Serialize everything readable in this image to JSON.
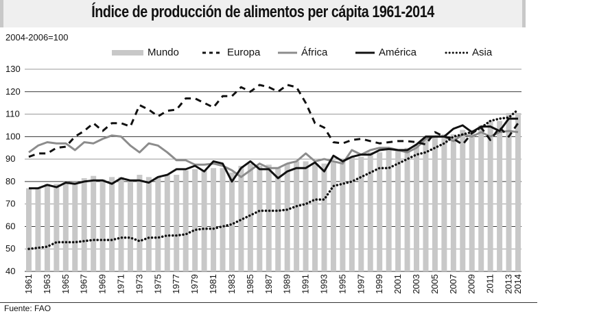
{
  "chart_data": {
    "type": "bar+line",
    "title": "Índice de producción de alimentos per cápita 1961-2014",
    "subtitle": "2004-2006=100",
    "source": "Fuente: FAO",
    "xlabel": "",
    "ylabel": "",
    "ylim": [
      40,
      130
    ],
    "yticks": [
      40,
      50,
      60,
      70,
      80,
      90,
      100,
      110,
      120,
      130
    ],
    "grid": true,
    "legend_position": "top",
    "x": [
      1961,
      1962,
      1963,
      1964,
      1965,
      1966,
      1967,
      1968,
      1969,
      1970,
      1971,
      1972,
      1973,
      1974,
      1975,
      1976,
      1977,
      1978,
      1979,
      1980,
      1981,
      1982,
      1983,
      1984,
      1985,
      1986,
      1987,
      1988,
      1989,
      1990,
      1991,
      1992,
      1993,
      1994,
      1995,
      1996,
      1997,
      1998,
      1999,
      2000,
      2001,
      2002,
      2003,
      2004,
      2005,
      2006,
      2007,
      2008,
      2009,
      2010,
      2011,
      2012,
      2013,
      2014
    ],
    "xtick_labels": [
      "1961",
      "1963",
      "1965",
      "1967",
      "1969",
      "1971",
      "1973",
      "1975",
      "1977",
      "1979",
      "1981",
      "1983",
      "1985",
      "1987",
      "1989",
      "1991",
      "1993",
      "1995",
      "1997",
      "1999",
      "2001",
      "2003",
      "2005",
      "2007",
      "2009",
      "2011",
      "2013",
      "2014"
    ],
    "series": [
      {
        "name": "Mundo",
        "style": "bar",
        "color": "#c8c8c8",
        "values": [
          77,
          77,
          79,
          79,
          80,
          80,
          81.5,
          82.5,
          81,
          82,
          82,
          80,
          83,
          82,
          82,
          83,
          83,
          85,
          85.5,
          85,
          86,
          86,
          84,
          87,
          88,
          87,
          87.5,
          86,
          88,
          89,
          89,
          88,
          88,
          89,
          89,
          91,
          91,
          93,
          93,
          94,
          94,
          95,
          96,
          99,
          100,
          101,
          101,
          103,
          103,
          105,
          107,
          107,
          110.5,
          110.5
        ]
      },
      {
        "name": "Europa",
        "style": "dashed",
        "color": "#111111",
        "values": [
          91,
          92.5,
          92.5,
          95,
          95.5,
          100,
          102.5,
          106,
          102.5,
          106,
          106,
          104.5,
          114,
          112,
          109,
          111.5,
          112,
          117,
          117,
          115,
          113,
          118,
          118,
          122,
          120,
          123,
          122,
          120,
          123,
          122,
          115,
          106,
          104,
          97.5,
          97,
          98.5,
          99,
          98,
          97,
          97.5,
          98,
          98,
          97.5,
          96.5,
          102,
          100,
          99,
          96.5,
          101.5,
          104,
          98.5,
          104,
          100,
          106
        ]
      },
      {
        "name": "África",
        "style": "solid",
        "color": "#8c8c8c",
        "values": [
          93,
          96,
          97.5,
          97,
          97,
          94,
          97.5,
          97,
          99,
          100.5,
          100,
          96,
          93,
          97,
          96,
          93,
          89.5,
          89.5,
          87.5,
          87.5,
          88,
          87,
          85,
          82,
          85,
          88,
          86,
          86,
          88,
          89,
          92.5,
          89,
          90,
          89,
          88,
          94,
          92,
          94,
          95,
          95,
          94,
          93,
          95,
          99,
          100,
          100,
          98,
          101,
          100,
          102,
          100,
          102,
          102.5,
          102
        ]
      },
      {
        "name": "América",
        "style": "solid",
        "color": "#111111",
        "values": [
          77,
          77,
          78.5,
          77.5,
          79.5,
          79,
          80,
          80.5,
          80.5,
          79,
          81.5,
          80.5,
          80.5,
          79.5,
          82,
          83,
          85.5,
          85.5,
          87,
          84.5,
          89,
          88,
          80,
          86,
          89,
          85.5,
          85.5,
          81.5,
          84.5,
          86,
          86,
          88.5,
          84.5,
          91.5,
          89,
          91,
          92,
          92,
          94,
          94.5,
          94,
          94,
          96.5,
          100,
          100,
          100,
          103.5,
          105,
          102,
          104.5,
          104.5,
          102.5,
          108,
          108
        ]
      },
      {
        "name": "Asia",
        "style": "dotted",
        "color": "#111111",
        "values": [
          50,
          50.5,
          51,
          53,
          53,
          53,
          53.5,
          54,
          54,
          54,
          55,
          55,
          53.5,
          55,
          55,
          56,
          56,
          56.5,
          58.5,
          59,
          59,
          60,
          61,
          63,
          65,
          67,
          67,
          67,
          67.5,
          69,
          70,
          72,
          72,
          78,
          79,
          80,
          82,
          84,
          86,
          86,
          88,
          90,
          92,
          93,
          95,
          97,
          100,
          101,
          102,
          104,
          107,
          108,
          108.5,
          112
        ]
      }
    ]
  },
  "texts": {
    "title": "Índice de producción de alimentos per cápita 1961-2014",
    "base": "2004-2006=100",
    "source": "Fuente: FAO"
  },
  "legend": [
    {
      "label": "Mundo",
      "style": "bar"
    },
    {
      "label": "Europa",
      "style": "dashed"
    },
    {
      "label": "África",
      "style": "solid-gray"
    },
    {
      "label": "América",
      "style": "solid-black"
    },
    {
      "label": "Asia",
      "style": "dotted"
    }
  ]
}
